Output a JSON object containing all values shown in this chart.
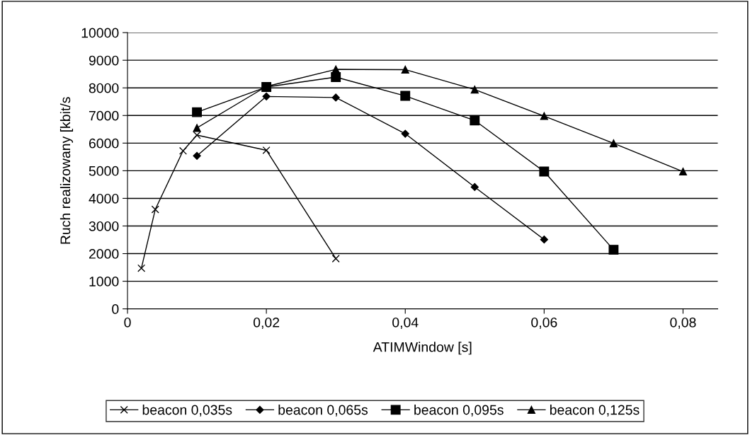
{
  "chart_data": {
    "type": "line",
    "xlabel": "ATIMWindow [s]",
    "ylabel": "Ruch realizowany [kbit/s",
    "xlim": [
      0,
      0.085
    ],
    "xticks": [
      0,
      {
        "value": 0.02,
        "label": "0,02"
      },
      {
        "value": 0.04,
        "label": "0,04"
      },
      {
        "value": 0.06,
        "label": "0,06"
      },
      {
        "value": 0.08,
        "label": "0,08"
      }
    ],
    "ylim": [
      0,
      10000
    ],
    "yticks": [
      0,
      1000,
      2000,
      3000,
      4000,
      5000,
      6000,
      7000,
      8000,
      9000,
      10000
    ],
    "grid": "y",
    "legend": "bottom",
    "series": [
      {
        "name": "beacon 0,035s",
        "color": "#000000",
        "marker": "cross",
        "x": [
          0.002,
          0.004,
          0.008,
          0.01,
          0.02,
          0.03
        ],
        "values": [
          1470,
          3600,
          5720,
          6290,
          5740,
          1820
        ]
      },
      {
        "name": "beacon 0,065s",
        "color": "#000000",
        "marker": "diamond",
        "x": [
          0.01,
          0.02,
          0.03,
          0.04,
          0.05,
          0.06
        ],
        "values": [
          5540,
          7690,
          7650,
          6340,
          4410,
          2510
        ]
      },
      {
        "name": "beacon 0,095s",
        "color": "#000000",
        "marker": "square",
        "x": [
          0.01,
          0.02,
          0.03,
          0.04,
          0.05,
          0.06,
          0.07
        ],
        "values": [
          7120,
          8030,
          8390,
          7710,
          6820,
          4970,
          2140
        ]
      },
      {
        "name": "beacon 0,125s",
        "color": "#000000",
        "marker": "triangle",
        "x": [
          0.01,
          0.02,
          0.03,
          0.04,
          0.05,
          0.06,
          0.07,
          0.08
        ],
        "values": [
          6550,
          8050,
          8670,
          8660,
          7940,
          6980,
          5990,
          4970
        ]
      }
    ]
  }
}
